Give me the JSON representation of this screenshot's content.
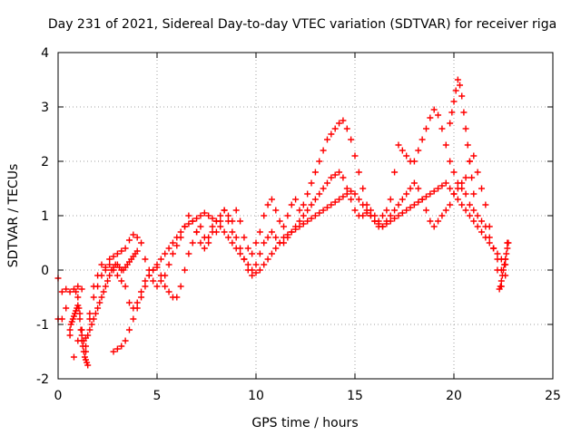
{
  "chart_data": {
    "type": "scatter",
    "title": "Day 231 of 2021, Sidereal Day-to-day VTEC variation (SDTVAR) for receiver riga",
    "xlabel": "GPS time / hours",
    "ylabel": "SDTVAR / TECUs",
    "xlim": [
      0,
      25
    ],
    "ylim": [
      -2,
      4
    ],
    "xticks": [
      "0",
      "5",
      "10",
      "15",
      "20",
      "25"
    ],
    "yticks": [
      "-2",
      "-1",
      "0",
      "1",
      "2",
      "3",
      "4"
    ],
    "grid": true,
    "marker": "+",
    "color": "#ff0000",
    "series": [
      {
        "name": "SDTVAR",
        "x": [
          0.0,
          0.2,
          0.4,
          0.6,
          0.8,
          1.0,
          1.2,
          1.4,
          1.6,
          1.8,
          2.0,
          2.2,
          2.4,
          2.6,
          2.8,
          3.0,
          3.2,
          3.4,
          3.6,
          3.8,
          4.0,
          4.2,
          4.4,
          4.6,
          4.8,
          5.0,
          5.2,
          5.4,
          5.6,
          5.8,
          6.0,
          6.2,
          6.4,
          6.6,
          6.8,
          7.0,
          7.2,
          7.4,
          7.6,
          7.8,
          8.0,
          8.2,
          8.4,
          8.6,
          8.8,
          9.0,
          9.2,
          9.4,
          9.6,
          9.8,
          10.0,
          10.2,
          10.4,
          10.6,
          10.8,
          11.0,
          11.2,
          11.4,
          11.6,
          11.8,
          12.0,
          12.2,
          12.4,
          12.6,
          12.8,
          13.0,
          13.2,
          13.4,
          13.6,
          13.8,
          14.0,
          14.2,
          14.4,
          14.6,
          14.8,
          15.0,
          15.2,
          15.4,
          15.6,
          15.8,
          16.0,
          16.2,
          16.4,
          16.6,
          16.8,
          17.0,
          17.2,
          17.4,
          17.6,
          17.8,
          18.0,
          18.2,
          18.4,
          18.6,
          18.8,
          19.0,
          19.2,
          19.4,
          19.6,
          19.8,
          20.0,
          20.2,
          20.4,
          20.6,
          20.8,
          21.0,
          21.2,
          21.4,
          21.6,
          21.8,
          22.0,
          22.2,
          22.4,
          22.6,
          22.7,
          0.0,
          0.2,
          0.4,
          0.6,
          0.8,
          1.0,
          1.2,
          1.4,
          1.6,
          1.8,
          2.0,
          2.2,
          2.4,
          2.6,
          2.8,
          3.0,
          3.2,
          3.4,
          3.6,
          3.8,
          4.0,
          4.2,
          4.4,
          4.6,
          4.8,
          5.0,
          5.2,
          5.4,
          5.6,
          5.8,
          6.0,
          6.2,
          6.4,
          6.6,
          6.8,
          7.0,
          7.2,
          7.4,
          7.6,
          7.8,
          8.0,
          8.2,
          8.4,
          8.6,
          8.8,
          9.0,
          9.2,
          9.4,
          9.6,
          9.8,
          10.0,
          10.2,
          10.4,
          10.6,
          10.8,
          11.0,
          11.2,
          11.4,
          11.6,
          11.8,
          12.0,
          12.2,
          12.4,
          12.6,
          12.8,
          13.0,
          13.2,
          13.4,
          13.6,
          13.8,
          14.0,
          14.2,
          14.4,
          14.6,
          14.8,
          15.0,
          15.2,
          15.4,
          15.6,
          15.8,
          16.0,
          16.2,
          16.4,
          16.6,
          16.8,
          17.0,
          17.2,
          17.4,
          17.6,
          17.8,
          18.0,
          18.2,
          18.4,
          18.6,
          18.8,
          19.0,
          19.2,
          19.4,
          19.6,
          19.8,
          20.0,
          20.2,
          20.4,
          20.6,
          20.8,
          21.0,
          21.2,
          21.4,
          21.6,
          21.8,
          22.0,
          22.2,
          22.4,
          22.6,
          2.8,
          3.0,
          3.2,
          3.4,
          3.6,
          3.8,
          4.0,
          4.2,
          4.4,
          4.6,
          4.8,
          5.0,
          5.2,
          5.4,
          5.6,
          5.8,
          6.0,
          6.2,
          6.4,
          6.6,
          6.8,
          7.0,
          7.2,
          7.4,
          7.6,
          7.8,
          8.0,
          8.2,
          8.4,
          8.6,
          8.8,
          9.0,
          9.2,
          9.4,
          9.6,
          9.8,
          10.0,
          10.2,
          10.4,
          10.6,
          10.8,
          11.0,
          11.2,
          11.4,
          11.6,
          11.8,
          12.0,
          12.2,
          12.4,
          12.6,
          12.8,
          13.0,
          13.2,
          13.4,
          13.6,
          13.8,
          14.0,
          14.2,
          14.4,
          14.6,
          14.8,
          15.0,
          15.2,
          15.4,
          15.6,
          15.8,
          16.0,
          16.2,
          16.4,
          16.6,
          16.8,
          17.0,
          17.2,
          17.4,
          17.6,
          17.8,
          18.0,
          18.2,
          18.4,
          18.6,
          18.8,
          19.0,
          19.2,
          19.4,
          19.6,
          19.8,
          20.0,
          20.2,
          20.4,
          20.6,
          20.8,
          21.0,
          21.2,
          21.4,
          21.6,
          21.8,
          22.0,
          22.2,
          22.4,
          22.6,
          0.9,
          1.0,
          1.1,
          1.2,
          1.3,
          1.4,
          1.5,
          1.6,
          1.7,
          1.8,
          1.9,
          2.0,
          2.1,
          2.2,
          2.3,
          2.4,
          2.5,
          2.6,
          2.7,
          2.8,
          2.9,
          3.0,
          3.1,
          3.2,
          3.3,
          3.4,
          3.5,
          3.6,
          3.7,
          3.8,
          3.9,
          4.0,
          0.6,
          0.65,
          0.7,
          0.75,
          0.8,
          0.85,
          0.9,
          0.95,
          1.0,
          1.05,
          1.1,
          1.15,
          1.2,
          1.25,
          1.3,
          1.35,
          1.4,
          1.45,
          1.5,
          19.8,
          19.9,
          20.0,
          20.1,
          20.2,
          20.3,
          20.4,
          20.5,
          20.6,
          20.7,
          20.8,
          20.9,
          21.0,
          22.3,
          22.35,
          22.4,
          22.45,
          22.5,
          22.55,
          22.6,
          22.65,
          22.7,
          22.75
        ],
        "y": [
          -0.15,
          -0.9,
          -0.7,
          -1.2,
          -1.6,
          -1.3,
          -1.1,
          -1.5,
          -0.9,
          -0.3,
          -0.1,
          0.1,
          0.05,
          0.2,
          0.25,
          0.3,
          0.35,
          0.4,
          0.55,
          0.65,
          0.6,
          0.5,
          0.2,
          0.0,
          -0.2,
          -0.3,
          -0.2,
          -0.1,
          0.1,
          0.3,
          0.45,
          0.6,
          0.8,
          1.0,
          0.9,
          0.7,
          0.5,
          0.4,
          0.6,
          0.8,
          0.7,
          0.9,
          1.1,
          1.0,
          0.9,
          1.1,
          0.9,
          0.6,
          0.4,
          0.3,
          0.5,
          0.7,
          1.0,
          1.2,
          1.3,
          1.1,
          0.9,
          0.8,
          1.0,
          1.2,
          1.3,
          1.1,
          1.2,
          1.4,
          1.6,
          1.8,
          2.0,
          2.2,
          2.4,
          2.5,
          2.6,
          2.7,
          2.75,
          2.6,
          2.4,
          2.1,
          1.8,
          1.5,
          1.2,
          1.0,
          0.9,
          0.8,
          1.0,
          1.1,
          1.3,
          1.8,
          2.3,
          2.2,
          2.1,
          2.0,
          2.0,
          2.2,
          2.4,
          2.6,
          2.8,
          2.95,
          2.85,
          2.6,
          2.3,
          2.0,
          1.8,
          1.6,
          1.5,
          1.7,
          2.0,
          2.1,
          1.8,
          1.5,
          1.2,
          0.8,
          0.4,
          0.0,
          -0.3,
          0.2,
          0.5,
          -0.9,
          -0.4,
          -0.35,
          -0.4,
          -0.35,
          -0.3,
          -0.35,
          -1.4,
          -0.8,
          -0.5,
          -0.3,
          -0.1,
          0.0,
          0.1,
          0.0,
          -0.1,
          -0.2,
          -0.3,
          -0.6,
          -0.7,
          -0.6,
          -0.4,
          -0.2,
          -0.1,
          0.0,
          0.05,
          -0.1,
          -0.3,
          -0.4,
          -0.5,
          -0.5,
          -0.3,
          0.0,
          0.3,
          0.5,
          0.7,
          0.8,
          0.6,
          0.5,
          0.7,
          0.9,
          1.0,
          1.1,
          0.9,
          0.7,
          0.6,
          0.4,
          0.2,
          0.0,
          -0.1,
          0.1,
          0.3,
          0.5,
          0.6,
          0.7,
          0.6,
          0.5,
          0.5,
          0.6,
          0.7,
          0.8,
          0.9,
          1.0,
          1.1,
          1.2,
          1.3,
          1.4,
          1.5,
          1.6,
          1.7,
          1.75,
          1.8,
          1.7,
          1.5,
          1.3,
          1.1,
          1.0,
          1.0,
          1.05,
          1.1,
          1.0,
          0.9,
          0.8,
          0.9,
          1.0,
          1.1,
          1.2,
          1.3,
          1.4,
          1.5,
          1.6,
          1.5,
          1.3,
          1.1,
          0.9,
          0.8,
          0.9,
          1.0,
          1.1,
          1.2,
          1.4,
          1.5,
          1.6,
          1.4,
          1.2,
          1.1,
          1.0,
          0.9,
          0.8,
          0.6,
          0.4,
          0.2,
          0.0,
          -0.1,
          -1.5,
          -1.45,
          -1.4,
          -1.3,
          -1.1,
          -0.9,
          -0.7,
          -0.5,
          -0.3,
          -0.1,
          0.0,
          0.1,
          0.2,
          0.3,
          0.4,
          0.5,
          0.6,
          0.7,
          0.8,
          0.85,
          0.9,
          0.95,
          1.0,
          1.05,
          1.0,
          0.95,
          0.9,
          0.8,
          0.7,
          0.6,
          0.5,
          0.4,
          0.3,
          0.2,
          0.1,
          0.0,
          -0.05,
          0.0,
          0.1,
          0.2,
          0.3,
          0.4,
          0.5,
          0.6,
          0.65,
          0.7,
          0.75,
          0.8,
          0.85,
          0.9,
          0.95,
          1.0,
          1.05,
          1.1,
          1.15,
          1.2,
          1.25,
          1.3,
          1.35,
          1.4,
          1.45,
          1.4,
          1.3,
          1.2,
          1.1,
          1.0,
          0.9,
          0.85,
          0.8,
          0.85,
          0.9,
          0.95,
          1.0,
          1.05,
          1.1,
          1.15,
          1.2,
          1.25,
          1.3,
          1.35,
          1.4,
          1.45,
          1.5,
          1.55,
          1.6,
          1.5,
          1.4,
          1.3,
          1.2,
          1.1,
          1.0,
          0.9,
          0.8,
          0.7,
          0.6,
          0.5,
          0.4,
          0.3,
          0.2,
          0.1,
          -0.4,
          -0.5,
          -0.8,
          -1.2,
          -1.3,
          -1.25,
          -1.2,
          -1.1,
          -1.0,
          -0.9,
          -0.8,
          -0.7,
          -0.6,
          -0.5,
          -0.4,
          -0.3,
          -0.2,
          -0.1,
          0.0,
          0.05,
          0.1,
          0.1,
          0.05,
          0.0,
          0.0,
          0.05,
          0.1,
          0.15,
          0.2,
          0.25,
          0.3,
          0.35,
          -1.1,
          -1.0,
          -0.95,
          -0.9,
          -0.85,
          -0.8,
          -0.75,
          -0.7,
          -0.65,
          -0.7,
          -0.9,
          -1.1,
          -1.3,
          -1.4,
          -1.5,
          -1.6,
          -1.65,
          -1.7,
          -1.75,
          2.7,
          2.9,
          3.1,
          3.3,
          3.5,
          3.4,
          3.2,
          2.9,
          2.6,
          2.3,
          2.0,
          1.7,
          1.4,
          -0.35,
          -0.3,
          -0.2,
          -0.1,
          0.0,
          0.1,
          0.2,
          0.3,
          0.4,
          0.5
        ]
      }
    ]
  }
}
